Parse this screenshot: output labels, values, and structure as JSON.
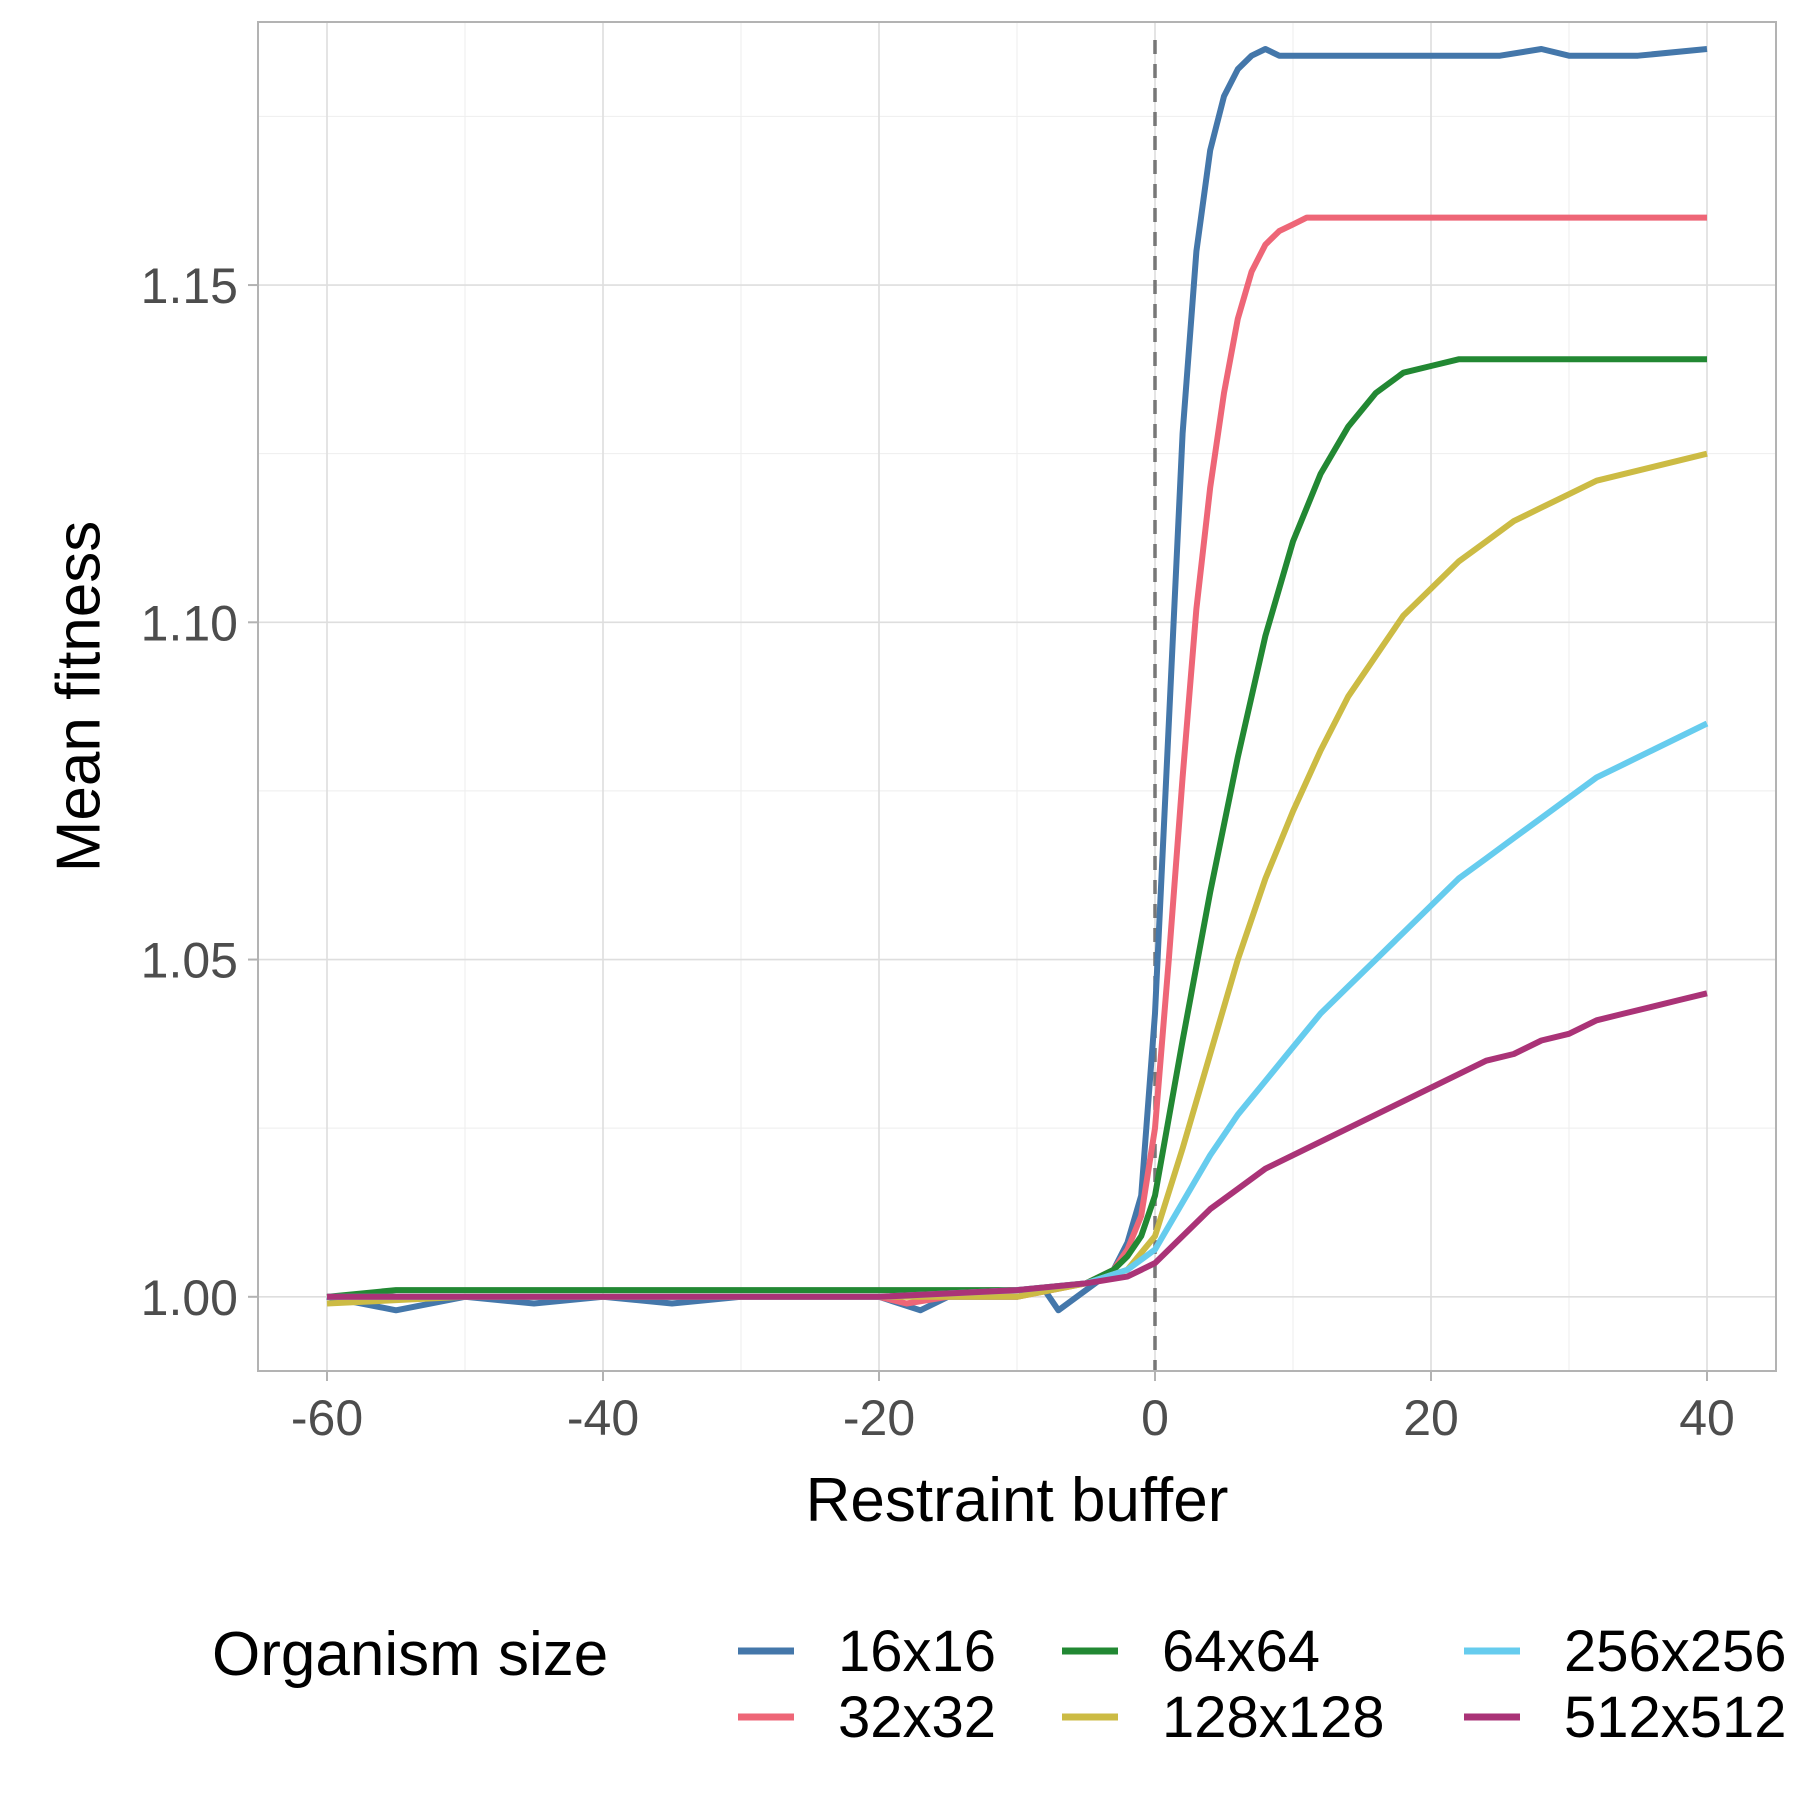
{
  "chart_data": {
    "type": "line",
    "title": "",
    "xlabel": "Restraint buffer",
    "ylabel": "Mean fitness",
    "xlim": [
      -65,
      45
    ],
    "ylim": [
      0.989,
      1.189
    ],
    "x_ticks": [
      -60,
      -40,
      -20,
      0,
      20,
      40
    ],
    "y_ticks": [
      1.0,
      1.05,
      1.1,
      1.15
    ],
    "x_tick_labels": [
      "-60",
      "-40",
      "-20",
      "0",
      "20",
      "40"
    ],
    "y_tick_labels": [
      "1.00",
      "1.05",
      "1.10",
      "1.15"
    ],
    "grid": true,
    "reference_line": {
      "x": 0,
      "style": "dashed",
      "color": "#777777"
    },
    "legend": {
      "title": "Organism size",
      "position": "bottom"
    },
    "series": [
      {
        "name": "16x16",
        "color": "#4477AA",
        "x": [
          -60,
          -55,
          -50,
          -45,
          -40,
          -35,
          -30,
          -25,
          -20,
          -17,
          -15,
          -10,
          -8,
          -7,
          -5,
          -3,
          -2,
          -1,
          0,
          1,
          2,
          3,
          4,
          5,
          6,
          7,
          8,
          9,
          10,
          15,
          20,
          25,
          28,
          30,
          35,
          40
        ],
        "y": [
          1.0,
          0.998,
          1.0,
          0.999,
          1.0,
          0.999,
          1.0,
          1.0,
          1.0,
          0.998,
          1.0,
          1.0,
          1.001,
          0.998,
          1.001,
          1.004,
          1.008,
          1.015,
          1.042,
          1.085,
          1.128,
          1.155,
          1.17,
          1.178,
          1.182,
          1.184,
          1.185,
          1.184,
          1.184,
          1.184,
          1.184,
          1.184,
          1.185,
          1.184,
          1.184,
          1.185
        ]
      },
      {
        "name": "32x32",
        "color": "#EE6677",
        "x": [
          -60,
          -50,
          -40,
          -30,
          -20,
          -18,
          -15,
          -10,
          -5,
          -3,
          -2,
          -1,
          0,
          1,
          2,
          3,
          4,
          5,
          6,
          7,
          8,
          9,
          10,
          11,
          12,
          15,
          20,
          25,
          30,
          35,
          40
        ],
        "y": [
          1.0,
          1.0,
          1.0,
          1.0,
          1.0,
          0.999,
          1.0,
          1.0,
          1.002,
          1.004,
          1.007,
          1.012,
          1.025,
          1.05,
          1.077,
          1.102,
          1.12,
          1.134,
          1.145,
          1.152,
          1.156,
          1.158,
          1.159,
          1.16,
          1.16,
          1.16,
          1.16,
          1.16,
          1.16,
          1.16,
          1.16
        ]
      },
      {
        "name": "64x64",
        "color": "#228833",
        "x": [
          -60,
          -55,
          -50,
          -45,
          -40,
          -35,
          -30,
          -25,
          -20,
          -15,
          -10,
          -5,
          -3,
          -2,
          -1,
          0,
          2,
          4,
          6,
          8,
          10,
          12,
          14,
          16,
          18,
          20,
          22,
          25,
          30,
          35,
          40
        ],
        "y": [
          1.0,
          1.001,
          1.001,
          1.001,
          1.001,
          1.001,
          1.001,
          1.001,
          1.001,
          1.001,
          1.001,
          1.002,
          1.004,
          1.006,
          1.009,
          1.015,
          1.038,
          1.06,
          1.08,
          1.098,
          1.112,
          1.122,
          1.129,
          1.134,
          1.137,
          1.138,
          1.139,
          1.139,
          1.139,
          1.139,
          1.139
        ]
      },
      {
        "name": "128x128",
        "color": "#CCBB44",
        "x": [
          -60,
          -50,
          -40,
          -30,
          -20,
          -10,
          -5,
          -2,
          0,
          2,
          4,
          6,
          8,
          10,
          12,
          14,
          16,
          18,
          20,
          22,
          24,
          26,
          28,
          30,
          32,
          34,
          36,
          38,
          40
        ],
        "y": [
          0.999,
          1.0,
          1.0,
          1.0,
          1.0,
          1.0,
          1.002,
          1.004,
          1.009,
          1.022,
          1.036,
          1.05,
          1.062,
          1.072,
          1.081,
          1.089,
          1.095,
          1.101,
          1.105,
          1.109,
          1.112,
          1.115,
          1.117,
          1.119,
          1.121,
          1.122,
          1.123,
          1.124,
          1.125
        ]
      },
      {
        "name": "256x256",
        "color": "#66CCEE",
        "x": [
          -60,
          -50,
          -40,
          -30,
          -20,
          -10,
          -5,
          -2,
          0,
          2,
          4,
          6,
          8,
          10,
          12,
          14,
          16,
          18,
          20,
          22,
          24,
          26,
          28,
          30,
          32,
          34,
          36,
          38,
          40
        ],
        "y": [
          1.0,
          1.0,
          1.0,
          1.0,
          1.0,
          1.001,
          1.002,
          1.004,
          1.007,
          1.014,
          1.021,
          1.027,
          1.032,
          1.037,
          1.042,
          1.046,
          1.05,
          1.054,
          1.058,
          1.062,
          1.065,
          1.068,
          1.071,
          1.074,
          1.077,
          1.079,
          1.081,
          1.083,
          1.085
        ]
      },
      {
        "name": "512x512",
        "color": "#AA3377",
        "x": [
          -60,
          -50,
          -40,
          -30,
          -20,
          -10,
          -5,
          -2,
          0,
          2,
          4,
          6,
          8,
          10,
          12,
          14,
          16,
          18,
          20,
          22,
          24,
          26,
          28,
          30,
          32,
          34,
          36,
          38,
          40
        ],
        "y": [
          1.0,
          1.0,
          1.0,
          1.0,
          1.0,
          1.001,
          1.002,
          1.003,
          1.005,
          1.009,
          1.013,
          1.016,
          1.019,
          1.021,
          1.023,
          1.025,
          1.027,
          1.029,
          1.031,
          1.033,
          1.035,
          1.036,
          1.038,
          1.039,
          1.041,
          1.042,
          1.043,
          1.044,
          1.045
        ]
      }
    ]
  }
}
